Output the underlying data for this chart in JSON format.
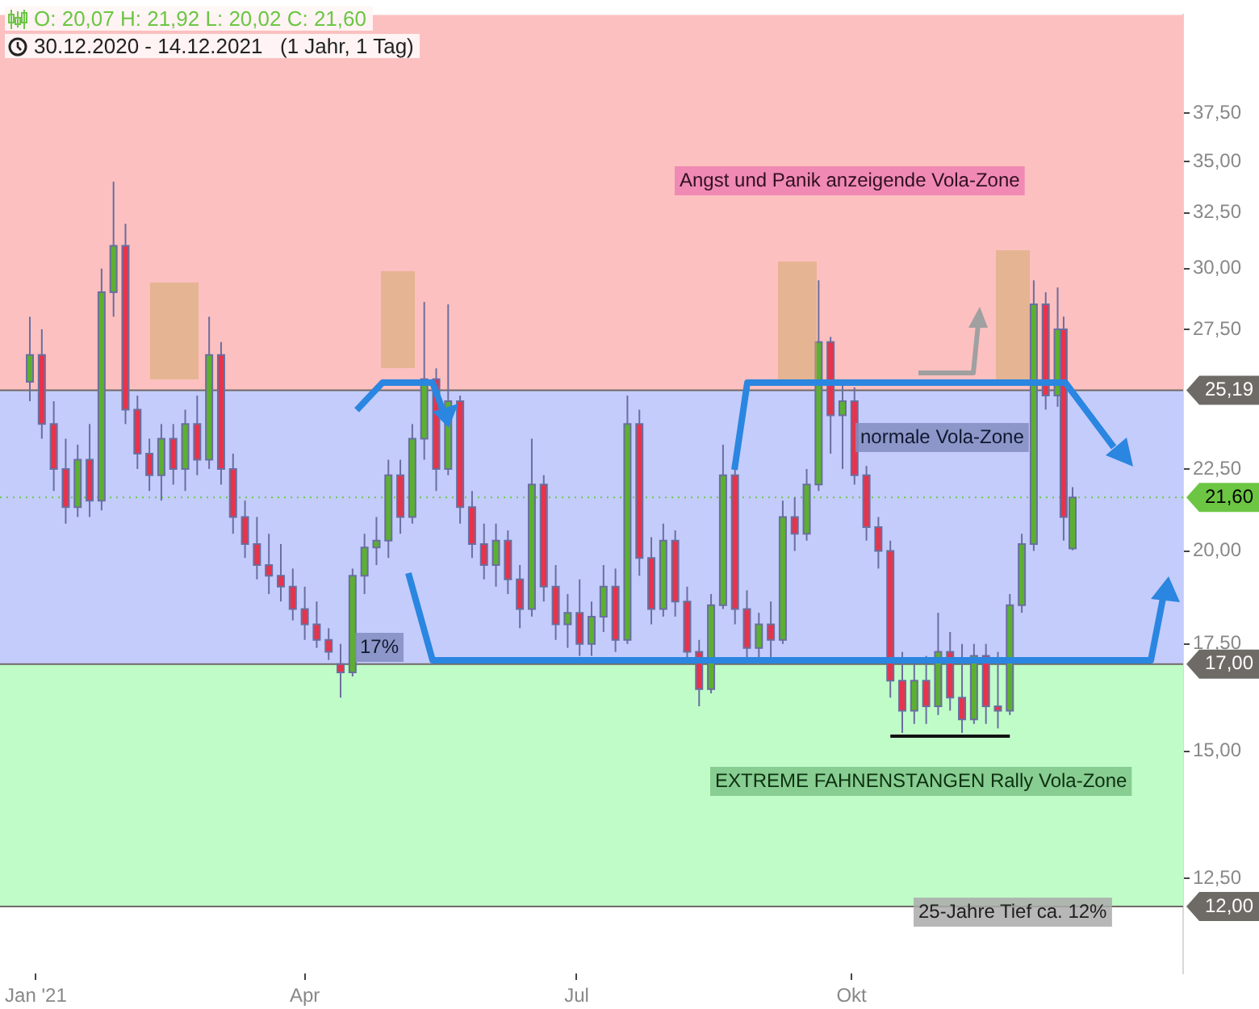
{
  "chart_data": {
    "type": "candlestick",
    "title": "O: 20,07  H: 21,92  L: 20,02  C: 21,60",
    "subtitle": "30.12.2020 - 14.12.2021   (1 Jahr, 1 Tag)",
    "x": [
      "2020-12-30",
      "2021-01-03",
      "2021-01-07",
      "2021-01-11",
      "2021-01-15",
      "2021-01-19",
      "2021-01-23",
      "2021-01-27",
      "2021-01-31",
      "2021-02-04",
      "2021-02-08",
      "2021-02-12",
      "2021-02-16",
      "2021-02-20",
      "2021-02-24",
      "2021-02-28",
      "2021-03-04",
      "2021-03-08",
      "2021-03-12",
      "2021-03-16",
      "2021-03-20",
      "2021-03-24",
      "2021-03-28",
      "2021-04-01",
      "2021-04-05",
      "2021-04-09",
      "2021-04-13",
      "2021-04-17",
      "2021-04-21",
      "2021-04-25",
      "2021-04-29",
      "2021-05-03",
      "2021-05-07",
      "2021-05-11",
      "2021-05-15",
      "2021-05-19",
      "2021-05-23",
      "2021-05-27",
      "2021-05-31",
      "2021-06-04",
      "2021-06-08",
      "2021-06-12",
      "2021-06-16",
      "2021-06-20",
      "2021-06-24",
      "2021-06-28",
      "2021-07-02",
      "2021-07-06",
      "2021-07-10",
      "2021-07-14",
      "2021-07-18",
      "2021-07-22",
      "2021-07-26",
      "2021-07-30",
      "2021-08-03",
      "2021-08-07",
      "2021-08-11",
      "2021-08-15",
      "2021-08-19",
      "2021-08-23",
      "2021-08-27",
      "2021-08-31",
      "2021-09-04",
      "2021-09-08",
      "2021-09-12",
      "2021-09-16",
      "2021-09-20",
      "2021-09-24",
      "2021-09-28",
      "2021-10-02",
      "2021-10-06",
      "2021-10-10",
      "2021-10-14",
      "2021-10-18",
      "2021-10-22",
      "2021-10-26",
      "2021-10-30",
      "2021-11-03",
      "2021-11-07",
      "2021-11-11",
      "2021-11-15",
      "2021-11-19",
      "2021-11-23",
      "2021-11-27",
      "2021-12-01",
      "2021-12-05",
      "2021-12-09",
      "2021-12-11",
      "2021-12-14"
    ],
    "ohlc": [
      [
        25.5,
        28.0,
        24.8,
        26.5
      ],
      [
        26.5,
        27.5,
        23.5,
        24.0
      ],
      [
        24,
        24.8,
        21.8,
        22.5
      ],
      [
        22.5,
        23.5,
        20.8,
        21.3
      ],
      [
        21.3,
        23.3,
        21,
        22.8
      ],
      [
        22.8,
        24,
        21,
        21.5
      ],
      [
        21.5,
        30,
        21.2,
        29
      ],
      [
        29,
        34,
        28,
        31
      ],
      [
        31,
        32,
        24,
        24.5
      ],
      [
        24.5,
        25,
        22.5,
        23
      ],
      [
        23,
        23.5,
        21.8,
        22.3
      ],
      [
        22.3,
        24,
        21.5,
        23.5
      ],
      [
        23.5,
        24,
        22,
        22.5
      ],
      [
        22.5,
        24.5,
        21.8,
        24
      ],
      [
        24,
        25,
        22.3,
        22.8
      ],
      [
        22.8,
        28,
        22.5,
        26.5
      ],
      [
        26.5,
        27,
        22,
        22.5
      ],
      [
        22.5,
        23,
        20.5,
        21
      ],
      [
        21,
        21.5,
        19.8,
        20.2
      ],
      [
        20.2,
        21,
        19.2,
        19.6
      ],
      [
        19.6,
        20.5,
        18.8,
        19.3
      ],
      [
        19.3,
        20.2,
        18.6,
        19
      ],
      [
        19,
        19.5,
        18.1,
        18.4
      ],
      [
        18.4,
        19,
        17.6,
        18
      ],
      [
        18,
        18.6,
        17.4,
        17.6
      ],
      [
        17.6,
        17.9,
        17.1,
        17.3
      ],
      [
        17,
        17.5,
        16.2,
        16.8
      ],
      [
        16.8,
        19.5,
        16.7,
        19.3
      ],
      [
        19.3,
        20.5,
        18.8,
        20.1
      ],
      [
        20.1,
        21,
        19.6,
        20.3
      ],
      [
        20.3,
        22.8,
        19.8,
        22.3
      ],
      [
        22.3,
        22.8,
        20.5,
        21
      ],
      [
        21,
        24,
        20.8,
        23.5
      ],
      [
        23.5,
        28.6,
        22.8,
        25.6
      ],
      [
        25.6,
        26,
        21.8,
        22.5
      ],
      [
        22.5,
        28.5,
        22.3,
        24.8
      ],
      [
        24.8,
        25,
        20.8,
        21.3
      ],
      [
        21.3,
        21.8,
        19.8,
        20.2
      ],
      [
        20.2,
        20.8,
        19.2,
        19.6
      ],
      [
        19.6,
        20.8,
        19,
        20.3
      ],
      [
        20.3,
        20.6,
        18.8,
        19.2
      ],
      [
        19.2,
        19.6,
        17.9,
        18.4
      ],
      [
        18.4,
        23.5,
        18.2,
        22
      ],
      [
        22,
        22.3,
        18.6,
        19
      ],
      [
        19,
        19.6,
        17.6,
        18
      ],
      [
        18,
        18.8,
        17.4,
        18.3
      ],
      [
        18.3,
        19.2,
        17.2,
        17.5
      ],
      [
        17.5,
        18.6,
        17.2,
        18.2
      ],
      [
        18.2,
        19.6,
        17.8,
        19
      ],
      [
        19,
        19.5,
        17.3,
        17.6
      ],
      [
        17.6,
        25,
        17.5,
        24
      ],
      [
        24,
        24.5,
        19.3,
        19.8
      ],
      [
        19.8,
        20.4,
        18,
        18.4
      ],
      [
        18.4,
        20.8,
        18.2,
        20.3
      ],
      [
        20.3,
        20.6,
        18.2,
        18.6
      ],
      [
        18.6,
        19,
        17,
        17.3
      ],
      [
        17.3,
        17.6,
        16,
        16.4
      ],
      [
        16.4,
        18.8,
        16.3,
        18.5
      ],
      [
        18.5,
        23.3,
        18.4,
        22.3
      ],
      [
        22.3,
        22.6,
        18,
        18.4
      ],
      [
        18.4,
        18.9,
        17,
        17.4
      ],
      [
        17.4,
        18.3,
        17,
        18
      ],
      [
        18,
        18.6,
        17.1,
        17.6
      ],
      [
        17.6,
        21.5,
        17.5,
        21
      ],
      [
        21,
        21.6,
        20,
        20.5
      ],
      [
        20.5,
        22.5,
        20.3,
        22
      ],
      [
        22,
        29.5,
        21.8,
        27
      ],
      [
        27,
        27.2,
        23,
        24.3
      ],
      [
        24.3,
        25.5,
        22.5,
        24.8
      ],
      [
        24.8,
        25.3,
        22,
        22.3
      ],
      [
        22.3,
        22.6,
        20.3,
        20.7
      ],
      [
        20.7,
        21,
        19.5,
        20
      ],
      [
        20,
        20.3,
        16.2,
        16.6
      ],
      [
        16.6,
        17.3,
        15.4,
        15.9
      ],
      [
        15.9,
        17,
        15.6,
        16.6
      ],
      [
        16.6,
        17.2,
        15.6,
        16
      ],
      [
        16,
        18.3,
        15.8,
        17.3
      ],
      [
        17.3,
        17.8,
        15.9,
        16.2
      ],
      [
        16.2,
        17.5,
        15.4,
        15.7
      ],
      [
        15.7,
        17.5,
        15.6,
        17.2
      ],
      [
        17.2,
        17.5,
        15.6,
        16
      ],
      [
        16,
        17.3,
        15.5,
        15.9
      ],
      [
        15.9,
        18.8,
        15.8,
        18.5
      ],
      [
        18.5,
        20.5,
        18.3,
        20.2
      ],
      [
        20.2,
        29.5,
        20,
        28.5
      ],
      [
        28.5,
        29,
        24.5,
        25
      ],
      [
        25,
        29.2,
        24.6,
        27.5
      ],
      [
        27.5,
        28,
        20.3,
        21
      ],
      [
        20.07,
        21.92,
        20.02,
        21.6
      ]
    ],
    "xlim": [
      "2020-12-20",
      "2022-01-20"
    ],
    "xticks": [
      {
        "value": "2021-01-01",
        "label": "Jan '21"
      },
      {
        "value": "2021-04-01",
        "label": "Apr"
      },
      {
        "value": "2021-07-01",
        "label": "Jul"
      },
      {
        "value": "2021-10-01",
        "label": "Okt"
      }
    ],
    "ylim": [
      10.9,
      43.2
    ],
    "log": true,
    "yticks": [
      {
        "value": 12.5,
        "label": "12,50"
      },
      {
        "value": 15,
        "label": "15,00"
      },
      {
        "value": 17.5,
        "label": "17,50"
      },
      {
        "value": 20,
        "label": "20,00"
      },
      {
        "value": 22.5,
        "label": "22,50"
      },
      {
        "value": 27.5,
        "label": "27,50"
      },
      {
        "value": 30,
        "label": "30,00"
      },
      {
        "value": 32.5,
        "label": "32,50"
      },
      {
        "value": 35,
        "label": "35,00"
      },
      {
        "value": 37.5,
        "label": "37,50"
      }
    ],
    "bands": [
      {
        "axis": "y",
        "from": 12,
        "to": 17,
        "color": "#c0fcc8"
      },
      {
        "axis": "y",
        "from": 17,
        "to": 25.19,
        "color": "#c4ccfc"
      },
      {
        "axis": "y",
        "from": 25.19,
        "to": 43.2,
        "color": "#fcc0c0"
      }
    ],
    "ref_lines": [
      {
        "axis": "y",
        "value": 25.19,
        "label": "25,19",
        "color": "#6e6a66",
        "line_style": "solid"
      },
      {
        "axis": "y",
        "value": 17,
        "label": "17,00",
        "color": "#6e6a66",
        "line_style": "solid"
      },
      {
        "axis": "y",
        "value": 12,
        "label": "12,00",
        "color": "#6e6a66",
        "line_style": "solid"
      },
      {
        "axis": "y",
        "value": 21.6,
        "label": "21,60",
        "color": "#6cc644",
        "line_style": "dotted"
      }
    ],
    "series": [
      {
        "type": "line",
        "x": [
          "2021-10-14",
          "2021-11-23"
        ],
        "values": [
          15.33,
          15.33
        ],
        "color": "#111111"
      }
    ],
    "annotations": [
      "Angst und Panik anzeigende Vola-Zone",
      "normale Vola-Zone",
      "EXTREME FAHNENSTANGEN Rally Vola-Zone",
      "25-Jahre Tief ca. 12%",
      "17%"
    ]
  }
}
